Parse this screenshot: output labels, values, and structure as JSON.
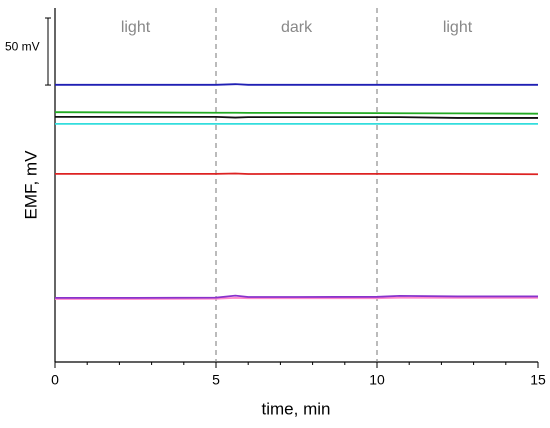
{
  "chart_data": {
    "type": "line",
    "y_label": "EMF, mV",
    "x_label": "time, min",
    "region_labels": [
      "light",
      "dark",
      "light"
    ],
    "vlines": [
      5,
      10
    ],
    "scale_bar": {
      "label": "50 mV",
      "value": 50
    },
    "x": [
      0,
      2.5,
      5,
      5.6,
      6,
      7.5,
      10,
      10.7,
      12.5,
      15
    ],
    "series": [
      {
        "name": "blue",
        "color": "#1f1fb4",
        "values": [
          206.7,
          206.7,
          206.7,
          207.2,
          206.7,
          206.7,
          206.7,
          206.7,
          206.7,
          206.7
        ]
      },
      {
        "name": "green",
        "color": "#22aa22",
        "values": [
          186.3,
          186.1,
          185.9,
          185.9,
          185.8,
          185.8,
          185.6,
          185.5,
          185.4,
          185.2
        ]
      },
      {
        "name": "black",
        "color": "#111111",
        "values": [
          182.8,
          182.8,
          182.8,
          182.3,
          182.6,
          182.6,
          182.6,
          182.6,
          182.0,
          182.0
        ]
      },
      {
        "name": "cyan",
        "color": "#33dddd",
        "values": [
          177.6,
          177.6,
          177.6,
          177.6,
          177.6,
          177.6,
          177.6,
          177.6,
          177.6,
          177.6
        ]
      },
      {
        "name": "red",
        "color": "#dd2222",
        "values": [
          140.3,
          140.3,
          140.3,
          140.6,
          140.2,
          140.3,
          140.3,
          140.3,
          140.3,
          140.0
        ]
      },
      {
        "name": "pink",
        "color": "#ff88cc",
        "values": [
          47.0,
          47.0,
          47.2,
          47.8,
          47.6,
          47.6,
          47.6,
          47.9,
          47.8,
          47.8
        ]
      },
      {
        "name": "purple",
        "color": "#8833cc",
        "values": [
          47.8,
          47.8,
          48.0,
          49.5,
          48.5,
          48.5,
          48.6,
          49.3,
          48.9,
          48.9
        ]
      }
    ],
    "xlim": [
      0,
      15
    ],
    "xticks": [
      0,
      5,
      10,
      15
    ],
    "xminorticks": [
      1,
      2,
      3,
      4,
      6,
      7,
      8,
      9,
      11,
      12,
      13,
      14
    ],
    "ylim": [
      0,
      264
    ]
  }
}
